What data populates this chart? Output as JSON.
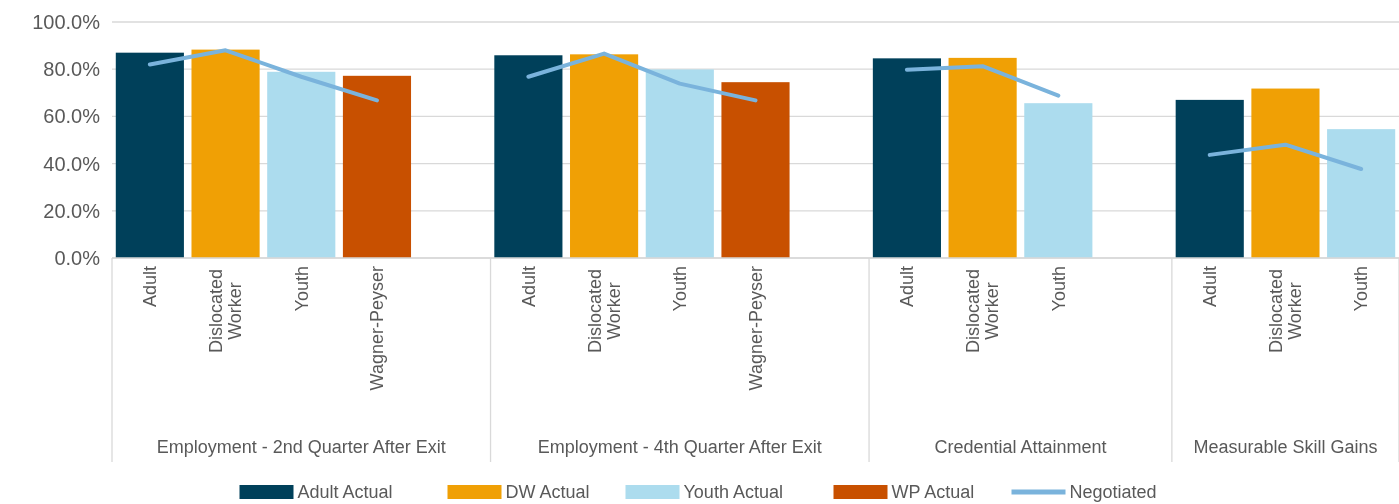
{
  "chart_data": {
    "type": "bar",
    "categories": [
      "Adult",
      "Dislocated Worker",
      "Youth",
      "Wagner-Peyser",
      null,
      "Adult",
      "Dislocated Worker",
      "Youth",
      "Wagner-Peyser",
      null,
      "Adult",
      "Dislocated Worker",
      "Youth",
      null,
      "Adult",
      "Dislocated Worker",
      "Youth"
    ],
    "series": [
      {
        "name": "Adult Actual",
        "color": "#00405a",
        "values": [
          87.0,
          null,
          null,
          null,
          null,
          85.9,
          null,
          null,
          null,
          null,
          84.6,
          null,
          null,
          null,
          67.0,
          null,
          null
        ]
      },
      {
        "name": "DW Actual",
        "color": "#f0a005",
        "values": [
          null,
          88.3,
          null,
          null,
          null,
          null,
          86.3,
          null,
          null,
          null,
          null,
          84.8,
          null,
          null,
          null,
          71.8,
          null
        ]
      },
      {
        "name": "Youth Actual",
        "color": "#acdcee",
        "values": [
          null,
          null,
          78.9,
          null,
          null,
          null,
          null,
          79.9,
          null,
          null,
          null,
          null,
          65.6,
          null,
          null,
          null,
          54.6
        ]
      },
      {
        "name": "WP Actual",
        "color": "#c85000",
        "values": [
          null,
          null,
          null,
          77.2,
          null,
          null,
          null,
          null,
          74.5,
          null,
          null,
          null,
          null,
          null,
          null,
          null,
          null
        ]
      },
      {
        "name": "Negotiated",
        "type": "line",
        "color": "#7ab3dc",
        "values": [
          82.0,
          88.0,
          76.8,
          66.8,
          null,
          76.8,
          86.6,
          73.9,
          66.8,
          null,
          79.8,
          81.3,
          68.8,
          null,
          43.7,
          48.0,
          37.7
        ]
      }
    ],
    "annotations": [
      "Employment - 2nd Quarter After Exit",
      "Employment - 4th Quarter After Exit",
      "Credential Attainment",
      "Measurable Skill Gains"
    ],
    "ylim": [
      0,
      100
    ],
    "yticks": [
      {
        "value": 0,
        "label": "0.0%"
      },
      {
        "value": 20,
        "label": "20.0%"
      },
      {
        "value": 40,
        "label": "40.0%"
      },
      {
        "value": 60,
        "label": "60.0%"
      },
      {
        "value": 80,
        "label": "80.0%"
      },
      {
        "value": 100,
        "label": "100.0%"
      }
    ],
    "grid": "y",
    "legend": "bottom"
  }
}
